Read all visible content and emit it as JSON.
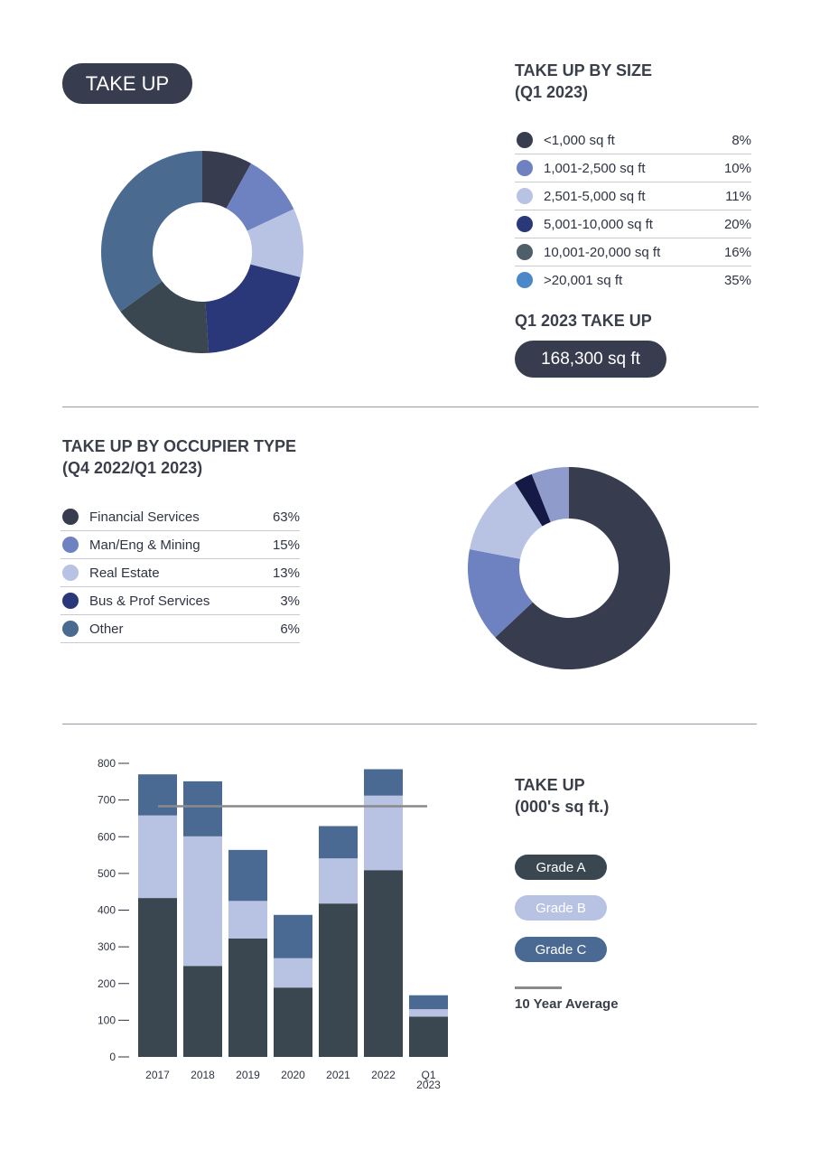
{
  "header": {
    "title": "TAKE UP"
  },
  "by_size": {
    "title_line1": "TAKE UP BY SIZE",
    "title_line2": "(Q1 2023)",
    "items": [
      {
        "label": "<1,000 sq ft",
        "pct": "8%",
        "value": 8,
        "color": "#373c4e",
        "dot_color": "#373c4e"
      },
      {
        "label": "1,001-2,500 sq ft",
        "pct": "10%",
        "value": 10,
        "color": "#6e81c0",
        "dot_color": "#6e81c0"
      },
      {
        "label": "2,501-5,000 sq ft",
        "pct": "11%",
        "value": 11,
        "color": "#b8c3e4",
        "dot_color": "#b8c3e4"
      },
      {
        "label": "5,001-10,000 sq ft",
        "pct": "20%",
        "value": 20,
        "color": "#2a3779",
        "dot_color": "#2a3779"
      },
      {
        "label": "10,001-20,000 sq ft",
        "pct": "16%",
        "value": 16,
        "color": "#3b4750",
        "dot_color": "#4e5f6a"
      },
      {
        "label": ">20,001 sq ft",
        "pct": "35%",
        "value": 35,
        "color": "#4a6a90",
        "dot_color": "#4a88c8"
      }
    ],
    "total_title": "Q1 2023 TAKE UP",
    "total_value": "168,300 sq ft"
  },
  "by_occupier": {
    "title_line1": "TAKE UP BY OCCUPIER TYPE",
    "title_line2": "(Q4 2022/Q1 2023)",
    "items": [
      {
        "label": "Financial Services",
        "pct": "63%",
        "value": 63,
        "color": "#373c4e",
        "dot_color": "#373c4e"
      },
      {
        "label": "Man/Eng & Mining",
        "pct": "15%",
        "value": 15,
        "color": "#6e81c0",
        "dot_color": "#6e81c0"
      },
      {
        "label": "Real Estate",
        "pct": "13%",
        "value": 13,
        "color": "#b8c3e4",
        "dot_color": "#b8c3e4"
      },
      {
        "label": "Bus & Prof Services",
        "pct": "3%",
        "value": 3,
        "color": "#141a45",
        "dot_color": "#2a3779"
      },
      {
        "label": "Other",
        "pct": "6%",
        "value": 6,
        "color": "#8f9ccb",
        "dot_color": "#4a6a90"
      }
    ]
  },
  "chart_data": {
    "type": "bar",
    "stacked": true,
    "title_line1": "TAKE UP",
    "title_line2": "(000's sq ft.)",
    "categories": [
      "2017",
      "2018",
      "2019",
      "2020",
      "2021",
      "2022",
      "Q1 2023"
    ],
    "category_labels": [
      [
        "2017"
      ],
      [
        "2018"
      ],
      [
        "2019"
      ],
      [
        "2020"
      ],
      [
        "2021"
      ],
      [
        "2022"
      ],
      [
        "Q1",
        "2023"
      ]
    ],
    "ylim": [
      0,
      800
    ],
    "yticks": [
      0,
      100,
      200,
      300,
      400,
      500,
      600,
      700,
      800
    ],
    "grid": false,
    "legend_placement": "right",
    "series": [
      {
        "name": "Grade A",
        "color": "#3b4750",
        "text_color": "#ffffff",
        "values": [
          433,
          248,
          323,
          189,
          418,
          509,
          110
        ]
      },
      {
        "name": "Grade B",
        "color": "#b8c3e4",
        "text_color": "#ffffff",
        "values": [
          225,
          353,
          102,
          80,
          123,
          203,
          20
        ]
      },
      {
        "name": "Grade C",
        "color": "#4a6a94",
        "text_color": "#ffffff",
        "values": [
          112,
          150,
          139,
          118,
          88,
          72,
          38
        ]
      }
    ],
    "average": {
      "name": "10 Year Average",
      "value": 683,
      "color": "#8a8a8a"
    }
  }
}
